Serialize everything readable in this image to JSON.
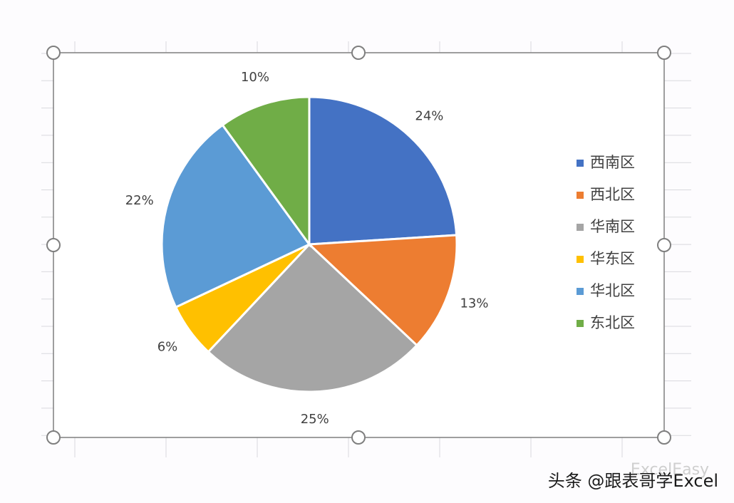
{
  "chart_data": {
    "type": "pie",
    "categories": [
      "西南区",
      "西北区",
      "华南区",
      "华东区",
      "华北区",
      "东北区"
    ],
    "values": [
      24,
      13,
      25,
      6,
      22,
      10
    ],
    "value_labels": [
      "24%",
      "13%",
      "25%",
      "6%",
      "22%",
      "10%"
    ],
    "colors": [
      "#4472c4",
      "#ed7d31",
      "#a5a5a5",
      "#ffc000",
      "#5b9bd5",
      "#70ad47"
    ],
    "legend": "right"
  },
  "watermark": {
    "brand": "ExcelEasy",
    "text": "头条 @跟表哥学Excel"
  }
}
